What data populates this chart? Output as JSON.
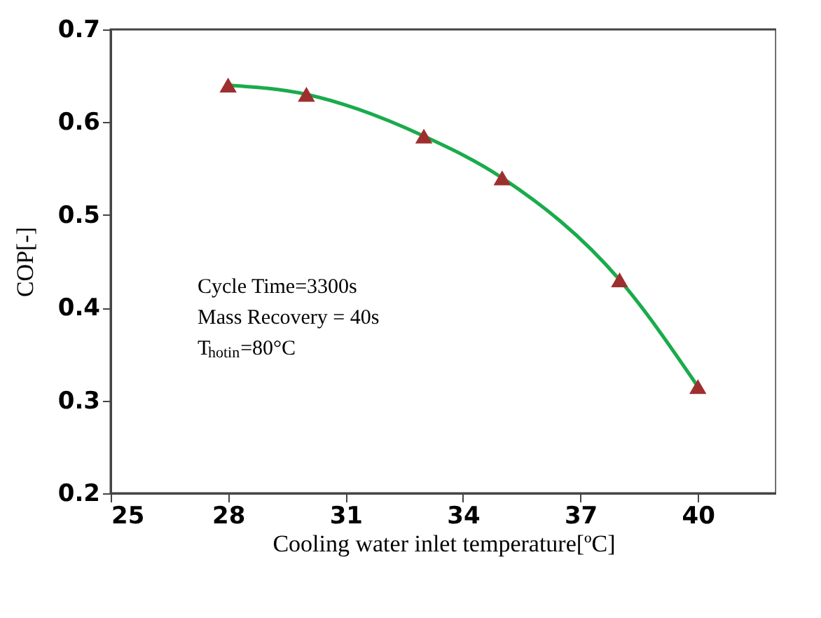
{
  "chart_data": {
    "type": "line",
    "xlabel": "Cooling water inlet temperature[ºC]",
    "ylabel": "COP[-]",
    "x": [
      28,
      30,
      33,
      35,
      38,
      40
    ],
    "series": [
      {
        "color": "#1aab4b",
        "marker": "none",
        "values": [
          0.64,
          0.63,
          0.585,
          0.54,
          0.43,
          0.315
        ]
      },
      {
        "type": "scatter",
        "color": "#9e2f2f",
        "marker": "triangle",
        "values": [
          0.64,
          0.63,
          0.585,
          0.54,
          0.43,
          0.315
        ]
      }
    ],
    "xlim": [
      25,
      42
    ],
    "xticks": [
      25,
      28,
      31,
      34,
      37,
      40
    ],
    "ylim": [
      0.2,
      0.7
    ],
    "yticks": [
      0.2,
      0.3,
      0.4,
      0.5,
      0.6,
      0.7
    ],
    "grid": false,
    "annotations": [
      "Cycle Time=3300s",
      "Mass Recovery = 40s",
      "T$_{hotin}$=80°C"
    ]
  }
}
